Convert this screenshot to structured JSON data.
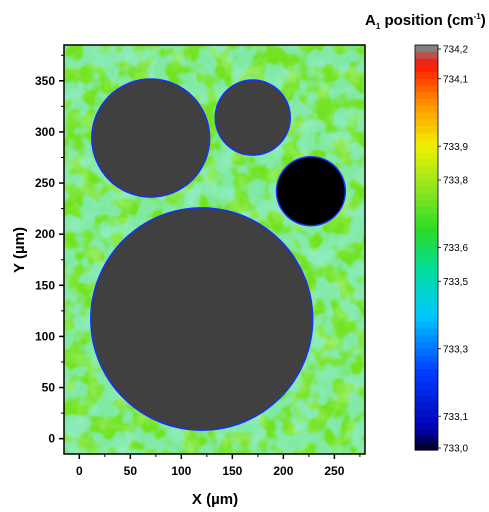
{
  "chart_data": {
    "type": "heatmap",
    "title": "",
    "xlabel": "X (µm)",
    "ylabel": "Y (µm)",
    "colorbar": {
      "label_main": "A",
      "label_sub": "1",
      "label_rest": " position (cm",
      "label_sup": "-1",
      "label_close": ")",
      "ticks": [
        "734,2",
        "734,1",
        "733,9",
        "733,8",
        "733,6",
        "733,5",
        "733,3",
        "733,1",
        "733,0"
      ],
      "tick_values": [
        734.2,
        734.1,
        733.9,
        733.8,
        733.6,
        733.5,
        733.3,
        733.1,
        733.0
      ],
      "range": [
        733.0,
        734.2
      ]
    },
    "xlim": [
      -15,
      280
    ],
    "ylim": [
      -15,
      385
    ],
    "xticks": [
      "0",
      "50",
      "100",
      "150",
      "200",
      "250"
    ],
    "xtick_values": [
      0,
      50,
      100,
      150,
      200,
      250
    ],
    "yticks": [
      "0",
      "50",
      "100",
      "150",
      "200",
      "250",
      "300",
      "350"
    ],
    "ytick_values": [
      0,
      50,
      100,
      150,
      200,
      250,
      300,
      350
    ],
    "background_level": 733.75,
    "regions": [
      {
        "name": "masked-large",
        "fill": "#404040",
        "cx": 120,
        "cy": 117,
        "r": 108
      },
      {
        "name": "masked-upper-left",
        "fill": "#404040",
        "cx": 70,
        "cy": 294,
        "r": 57
      },
      {
        "name": "masked-upper-mid",
        "fill": "#404040",
        "cx": 170,
        "cy": 314,
        "r": 36
      },
      {
        "name": "low-value-spot",
        "fill": "#000000",
        "cx": 227,
        "cy": 242,
        "r": 33
      }
    ]
  },
  "colors": {
    "masked": "#404040",
    "minimum": "#000000",
    "background": "#7ee05a",
    "outline": "#1a2cff"
  }
}
